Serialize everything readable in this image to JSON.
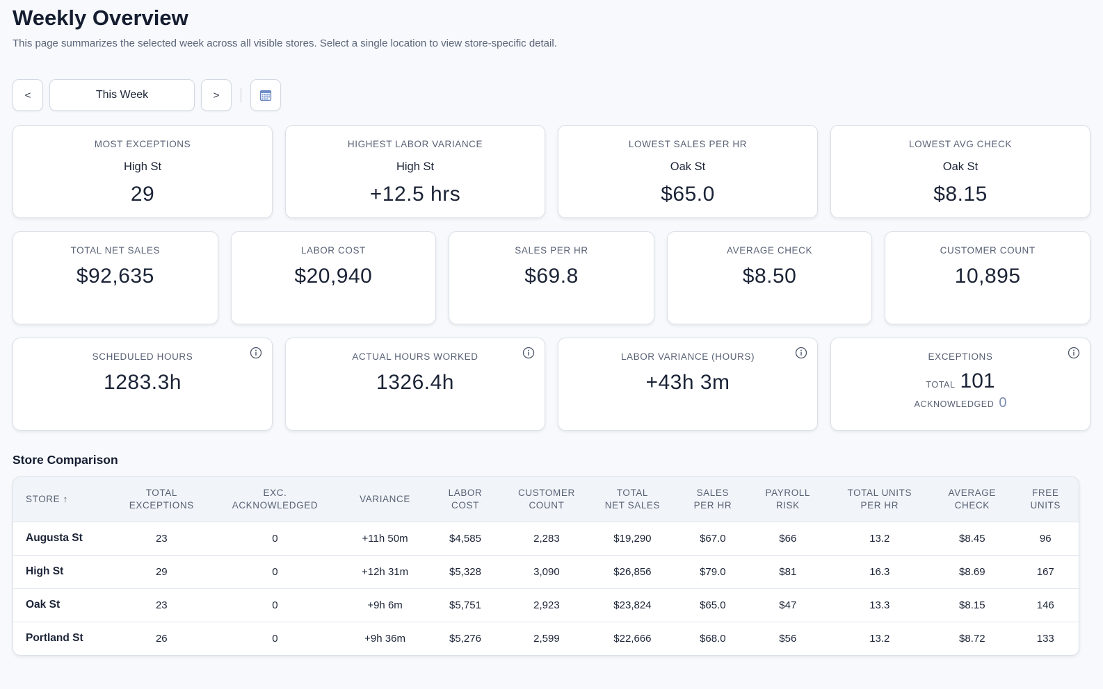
{
  "header": {
    "title": "Weekly Overview",
    "subtitle": "This page summarizes the selected week across all visible stores. Select a single location to view store-specific detail."
  },
  "week_nav": {
    "prev_label": "<",
    "current_label": "This Week",
    "next_label": ">",
    "calendar_icon": "calendar-icon"
  },
  "highlights": [
    {
      "label": "MOST EXCEPTIONS",
      "store": "High St",
      "value": "29"
    },
    {
      "label": "HIGHEST LABOR VARIANCE",
      "store": "High St",
      "value": "+12.5 hrs"
    },
    {
      "label": "LOWEST SALES PER HR",
      "store": "Oak St",
      "value": "$65.0"
    },
    {
      "label": "LOWEST AVG CHECK",
      "store": "Oak St",
      "value": "$8.15"
    }
  ],
  "totals": [
    {
      "label": "TOTAL NET SALES",
      "value": "$92,635"
    },
    {
      "label": "LABOR COST",
      "value": "$20,940"
    },
    {
      "label": "SALES PER HR",
      "value": "$69.8"
    },
    {
      "label": "AVERAGE CHECK",
      "value": "$8.50"
    },
    {
      "label": "CUSTOMER COUNT",
      "value": "10,895"
    }
  ],
  "hours": [
    {
      "label": "SCHEDULED HOURS",
      "value": "1283.3h"
    },
    {
      "label": "ACTUAL HOURS WORKED",
      "value": "1326.4h"
    },
    {
      "label": "LABOR VARIANCE (HOURS)",
      "value": "+43h 3m"
    }
  ],
  "exceptions": {
    "label": "EXCEPTIONS",
    "total_label": "TOTAL",
    "total_value": "101",
    "ack_label": "ACKNOWLEDGED",
    "ack_value": "0"
  },
  "comparison": {
    "title": "Store Comparison",
    "headers": [
      [
        "STORE ↑"
      ],
      [
        "TOTAL",
        "EXCEPTIONS"
      ],
      [
        "EXC.",
        "ACKNOWLEDGED"
      ],
      [
        "VARIANCE"
      ],
      [
        "LABOR",
        "COST"
      ],
      [
        "CUSTOMER",
        "COUNT"
      ],
      [
        "TOTAL",
        "NET SALES"
      ],
      [
        "SALES",
        "PER HR"
      ],
      [
        "PAYROLL",
        "RISK"
      ],
      [
        "TOTAL UNITS",
        "PER HR"
      ],
      [
        "AVERAGE",
        "CHECK"
      ],
      [
        "FREE",
        "UNITS"
      ]
    ],
    "rows": [
      [
        "Augusta St",
        "23",
        "0",
        "+11h 50m",
        "$4,585",
        "2,283",
        "$19,290",
        "$67.0",
        "$66",
        "13.2",
        "$8.45",
        "96"
      ],
      [
        "High St",
        "29",
        "0",
        "+12h 31m",
        "$5,328",
        "3,090",
        "$26,856",
        "$79.0",
        "$81",
        "16.3",
        "$8.69",
        "167"
      ],
      [
        "Oak St",
        "23",
        "0",
        "+9h 6m",
        "$5,751",
        "2,923",
        "$23,824",
        "$65.0",
        "$47",
        "13.3",
        "$8.15",
        "146"
      ],
      [
        "Portland St",
        "26",
        "0",
        "+9h 36m",
        "$5,276",
        "2,599",
        "$22,666",
        "$68.0",
        "$56",
        "13.2",
        "$8.72",
        "133"
      ]
    ]
  }
}
